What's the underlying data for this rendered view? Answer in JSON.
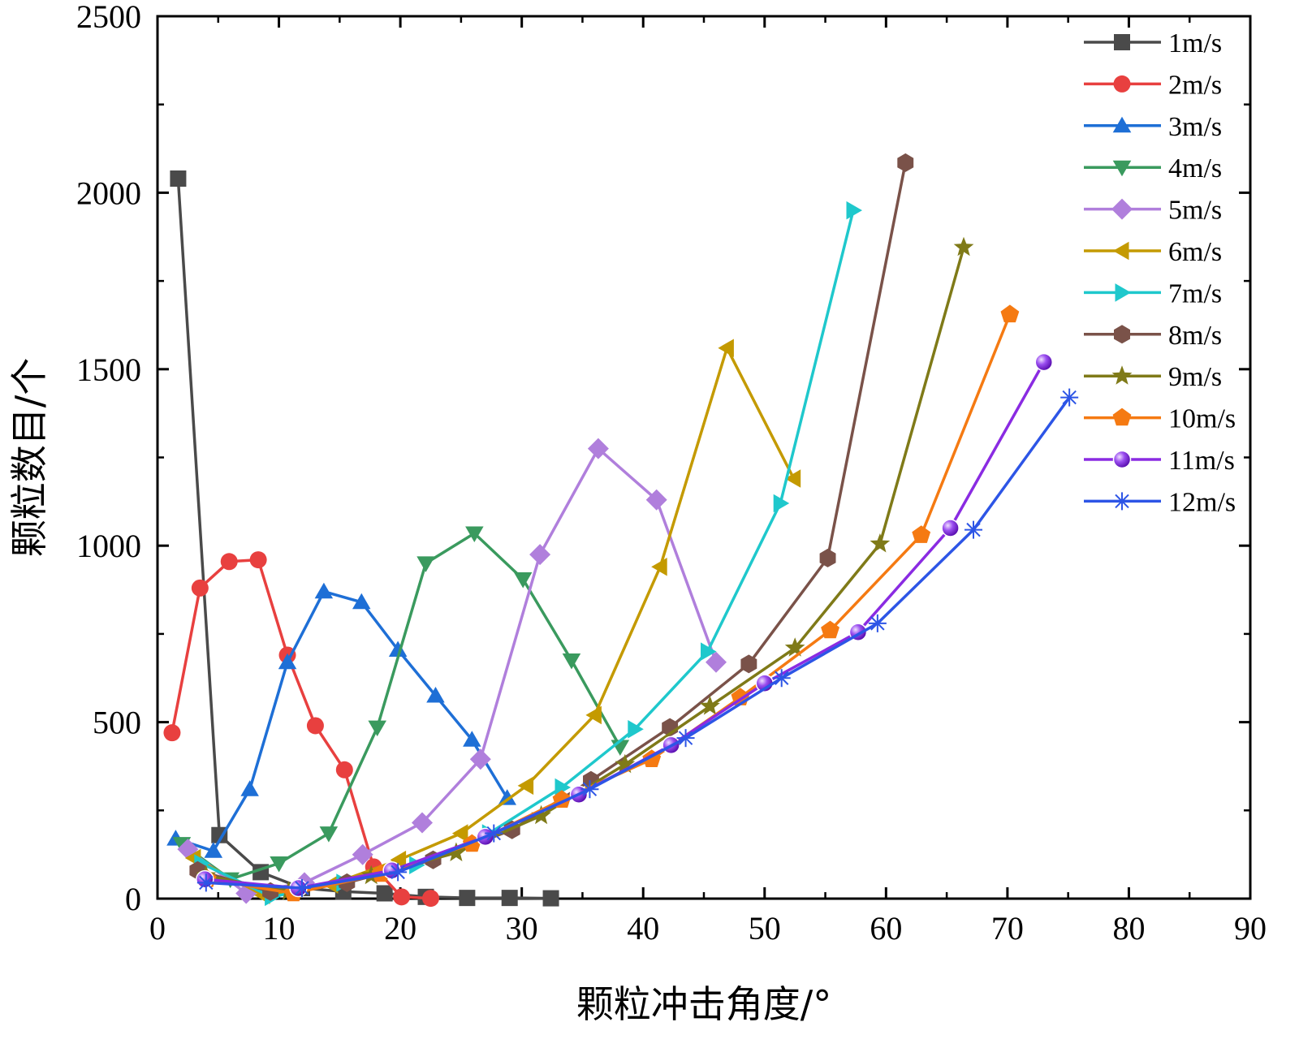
{
  "chart_data": {
    "type": "line",
    "xlabel": "颗粒冲击角度/°",
    "ylabel": "颗粒数目/个",
    "xlim": [
      0,
      90
    ],
    "ylim": [
      0,
      2500
    ],
    "xticks": [
      0,
      10,
      20,
      30,
      40,
      50,
      60,
      70,
      80,
      90
    ],
    "yticks": [
      0,
      500,
      1000,
      1500,
      2000,
      2500
    ],
    "legend_position": "top-right",
    "series": [
      {
        "name": "1m/s",
        "color": "#4a4a4a",
        "marker": "square",
        "x": [
          1.7,
          5.1,
          8.5,
          11.9,
          15.3,
          18.7,
          22.1,
          25.5,
          29.0,
          32.4
        ],
        "y": [
          2040,
          180,
          75,
          30,
          20,
          15,
          5,
          2,
          2,
          1
        ]
      },
      {
        "name": "2m/s",
        "color": "#e8403f",
        "marker": "circle",
        "x": [
          1.2,
          3.5,
          5.9,
          8.3,
          10.7,
          13.0,
          15.4,
          17.8,
          20.1,
          22.5
        ],
        "y": [
          470,
          880,
          955,
          960,
          690,
          490,
          365,
          90,
          5,
          1
        ]
      },
      {
        "name": "3m/s",
        "color": "#1e6fd6",
        "marker": "triangle-up",
        "x": [
          1.5,
          4.6,
          7.6,
          10.7,
          13.7,
          16.8,
          19.8,
          22.9,
          25.9,
          28.8
        ],
        "y": [
          170,
          135,
          310,
          670,
          870,
          840,
          705,
          575,
          450,
          285
        ]
      },
      {
        "name": "4m/s",
        "color": "#3a9a5e",
        "marker": "triangle-down",
        "x": [
          2.0,
          6.0,
          10.0,
          14.1,
          18.1,
          22.1,
          26.1,
          30.1,
          34.1,
          38.1
        ],
        "y": [
          155,
          55,
          100,
          185,
          485,
          950,
          1035,
          905,
          675,
          430
        ]
      },
      {
        "name": "5m/s",
        "color": "#b07fdc",
        "marker": "diamond",
        "x": [
          2.5,
          7.3,
          12.1,
          16.9,
          21.8,
          26.6,
          31.5,
          36.3,
          41.1,
          46.0
        ],
        "y": [
          140,
          15,
          45,
          125,
          215,
          395,
          975,
          1275,
          1130,
          670
        ]
      },
      {
        "name": "6m/s",
        "color": "#c49a00",
        "marker": "triangle-left",
        "x": [
          3.0,
          8.7,
          14.3,
          19.9,
          25.0,
          30.4,
          36.0,
          41.4,
          46.9,
          52.4
        ],
        "y": [
          115,
          10,
          40,
          110,
          185,
          320,
          520,
          940,
          1560,
          1190
        ]
      },
      {
        "name": "7m/s",
        "color": "#1fc8cc",
        "marker": "triangle-right",
        "x": [
          3.6,
          9.4,
          15.3,
          21.3,
          27.3,
          33.3,
          39.3,
          45.3,
          51.3,
          57.3
        ],
        "y": [
          100,
          5,
          45,
          95,
          185,
          315,
          480,
          700,
          1120,
          1950
        ]
      },
      {
        "name": "8m/s",
        "color": "#7a5249",
        "marker": "hexagon",
        "x": [
          3.3,
          9.3,
          15.6,
          22.7,
          29.2,
          35.7,
          42.2,
          48.7,
          55.2,
          61.6
        ],
        "y": [
          80,
          20,
          45,
          110,
          195,
          335,
          485,
          665,
          965,
          2085
        ]
      },
      {
        "name": "9m/s",
        "color": "#7f7a18",
        "marker": "star",
        "x": [
          4.0,
          10.8,
          17.6,
          24.6,
          31.6,
          38.5,
          45.5,
          52.5,
          59.5,
          66.4
        ],
        "y": [
          65,
          20,
          65,
          130,
          235,
          380,
          545,
          710,
          1005,
          1845
        ]
      },
      {
        "name": "10m/s",
        "color": "#f57a12",
        "marker": "pentagon",
        "x": [
          4.1,
          11.2,
          18.4,
          25.9,
          33.3,
          40.7,
          48.0,
          55.4,
          62.9,
          70.2
        ],
        "y": [
          55,
          15,
          70,
          155,
          280,
          395,
          570,
          760,
          1030,
          1655
        ]
      },
      {
        "name": "11m/s",
        "color": "#8a2be2",
        "marker": "ball",
        "x": [
          3.9,
          11.6,
          19.3,
          27.0,
          34.7,
          42.3,
          50.0,
          57.7,
          65.3,
          73.0
        ],
        "y": [
          55,
          30,
          80,
          175,
          295,
          435,
          610,
          755,
          1050,
          1520
        ]
      },
      {
        "name": "12m/s",
        "color": "#2d55e6",
        "marker": "asterisk",
        "x": [
          4.0,
          11.9,
          19.8,
          27.7,
          35.6,
          43.5,
          51.4,
          59.3,
          67.2,
          75.1
        ],
        "y": [
          45,
          30,
          75,
          185,
          310,
          455,
          625,
          780,
          1045,
          1420
        ]
      }
    ]
  }
}
